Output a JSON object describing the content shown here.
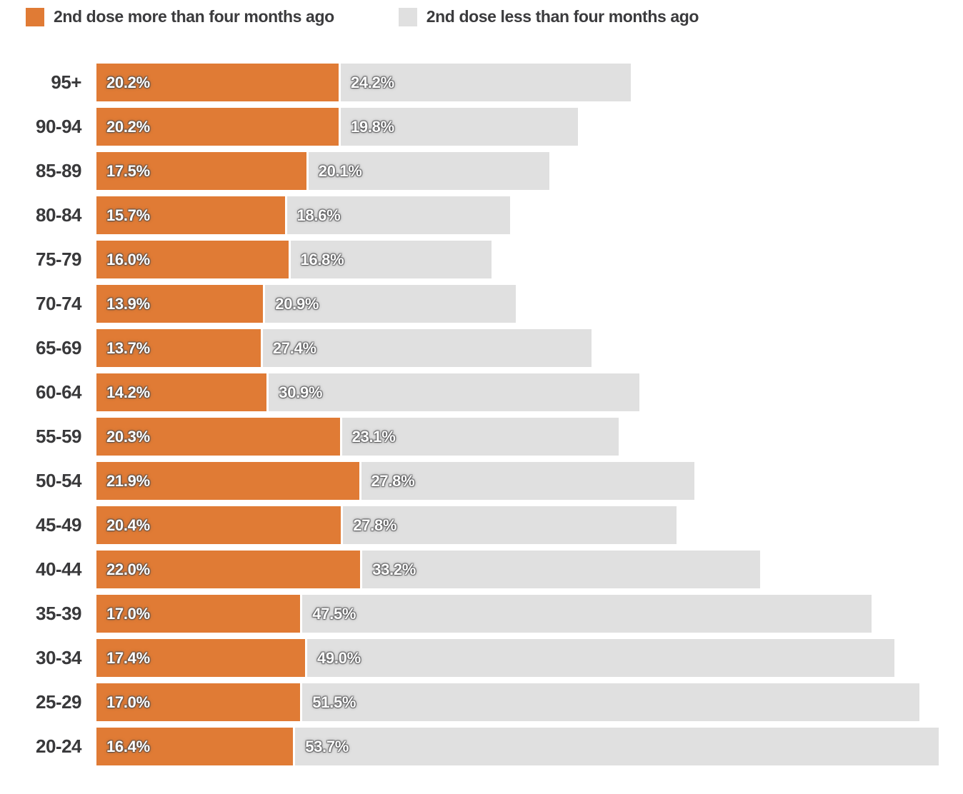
{
  "legend": {
    "items": [
      {
        "label": "2nd dose more than four months ago",
        "color": "#E07B35"
      },
      {
        "label": "2nd dose less than four months ago",
        "color": "#E0E0E0"
      }
    ]
  },
  "chart_data": {
    "type": "bar",
    "orientation": "horizontal",
    "stacked": true,
    "grid": false,
    "legend_position": "top",
    "value_suffix": "%",
    "xlim": [
      0,
      70.2
    ],
    "categories": [
      "95+",
      "90-94",
      "85-89",
      "80-84",
      "75-79",
      "70-74",
      "65-69",
      "60-64",
      "55-59",
      "50-54",
      "45-49",
      "40-44",
      "35-39",
      "30-34",
      "25-29",
      "20-24"
    ],
    "series": [
      {
        "name": "2nd dose more than four months ago",
        "color": "#E07B35",
        "values": [
          20.2,
          20.2,
          17.5,
          15.7,
          16.0,
          13.9,
          13.7,
          14.2,
          20.3,
          21.9,
          20.4,
          22.0,
          17.0,
          17.4,
          17.0,
          16.4
        ],
        "labels": [
          "20.2%",
          "20.2%",
          "17.5%",
          "15.7%",
          "16.0%",
          "13.9%",
          "13.7%",
          "14.2%",
          "20.3%",
          "21.9%",
          "20.4%",
          "22.0%",
          "17.0%",
          "17.4%",
          "17.0%",
          "16.4%"
        ]
      },
      {
        "name": "2nd dose less than four months ago",
        "color": "#E0E0E0",
        "values": [
          24.2,
          19.8,
          20.1,
          18.6,
          16.8,
          20.9,
          27.4,
          30.9,
          23.1,
          27.8,
          27.8,
          33.2,
          47.5,
          49.0,
          51.5,
          53.7
        ],
        "labels": [
          "24.2%",
          "19.8%",
          "20.1%",
          "18.6%",
          "16.8%",
          "20.9%",
          "27.4%",
          "30.9%",
          "23.1%",
          "27.8%",
          "27.8%",
          "33.2%",
          "47.5%",
          "49.0%",
          "51.5%",
          "53.7%"
        ]
      }
    ]
  },
  "colors": {
    "more_than_four_months": "#E07B35",
    "less_than_four_months": "#E0E0E0",
    "text_dark": "#39393b",
    "value_label": "#ffffff",
    "background": "#ffffff"
  }
}
